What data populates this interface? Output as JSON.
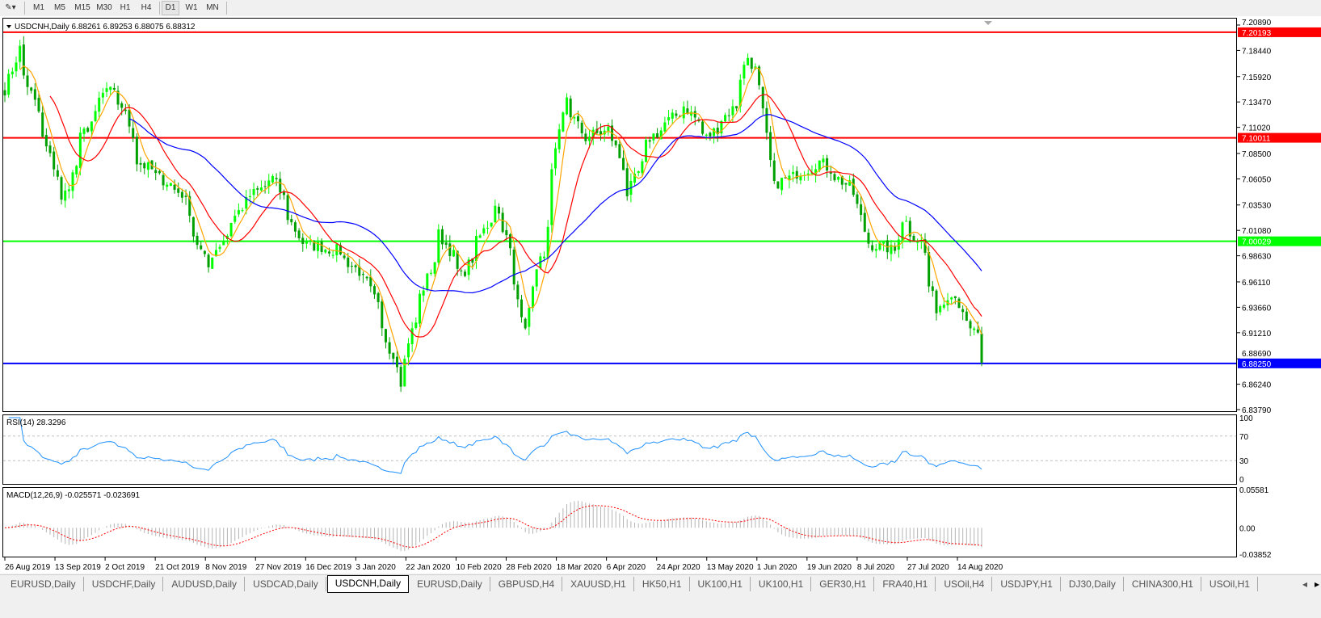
{
  "toolbar": {
    "timeframes": [
      "M1",
      "M5",
      "M15",
      "M30",
      "H1",
      "H4",
      "D1",
      "W1",
      "MN"
    ],
    "active": "D1"
  },
  "chart": {
    "header": "USDCNH,Daily  6.88261 6.89253 6.88075 6.88312",
    "price_ticks": [
      "7.20890",
      "7.18440",
      "7.15920",
      "7.13470",
      "7.11020",
      "7.08500",
      "7.06050",
      "7.03530",
      "7.01080",
      "6.98630",
      "6.96110",
      "6.93660",
      "6.91210",
      "6.88690",
      "6.86240",
      "6.83790"
    ],
    "hlines": [
      {
        "price": "7.20193",
        "color": "#ff0000"
      },
      {
        "price": "7.10011",
        "color": "#ff0000"
      },
      {
        "price": "7.00029",
        "color": "#00ff00"
      },
      {
        "price": "6.88250",
        "color": "#0000ff"
      }
    ],
    "date_labels": [
      "26 Aug 2019",
      "13 Sep 2019",
      "2 Oct 2019",
      "21 Oct 2019",
      "8 Nov 2019",
      "27 Nov 2019",
      "16 Dec 2019",
      "3 Jan 2020",
      "22 Jan 2020",
      "10 Feb 2020",
      "28 Feb 2020",
      "18 Mar 2020",
      "6 Apr 2020",
      "24 Apr 2020",
      "13 May 2020",
      "1 Jun 2020",
      "19 Jun 2020",
      "8 Jul 2020",
      "27 Jul 2020",
      "14 Aug 2020"
    ],
    "rsi": {
      "label": "RSI(14) 28.3296",
      "ticks": [
        "100",
        "70",
        "30",
        "0"
      ],
      "color": "#1e90ff"
    },
    "macd": {
      "label": "MACD(12,26,9) -0.025571 -0.023691",
      "ticks": [
        "0.05581",
        "0.00",
        "-0.03852"
      ],
      "signal_color": "#ff0000",
      "hist_color": "#b4b4b4"
    },
    "colors": {
      "bull": "#00ff00",
      "bear": "#00a000",
      "ma_fast": "#ffa500",
      "ma_mid": "#ff0000",
      "ma_slow": "#0000ff"
    }
  },
  "chart_data": {
    "type": "candlestick",
    "symbol": "USDCNH",
    "timeframe": "Daily",
    "ylim": [
      6.8356,
      7.2159
    ],
    "approx_close_anchors": [
      [
        "2019-08-26",
        7.147
      ],
      [
        "2019-08-30",
        7.186
      ],
      [
        "2019-09-16",
        7.038
      ],
      [
        "2019-09-23",
        7.1
      ],
      [
        "2019-10-02",
        7.147
      ],
      [
        "2019-10-08",
        7.131
      ],
      [
        "2019-10-14",
        7.077
      ],
      [
        "2019-10-30",
        7.046
      ],
      [
        "2019-11-08",
        6.975
      ],
      [
        "2019-11-22",
        7.038
      ],
      [
        "2019-12-03",
        7.061
      ],
      [
        "2019-12-13",
        6.999
      ],
      [
        "2019-12-27",
        6.991
      ],
      [
        "2020-01-07",
        6.96
      ],
      [
        "2020-01-16",
        6.89
      ],
      [
        "2020-01-20",
        6.866
      ],
      [
        "2020-01-22",
        6.905
      ],
      [
        "2020-02-03",
        7.007
      ],
      [
        "2020-02-11",
        6.967
      ],
      [
        "2020-02-24",
        7.038
      ],
      [
        "2020-03-05",
        6.921
      ],
      [
        "2020-03-12",
        6.991
      ],
      [
        "2020-03-20",
        7.14
      ],
      [
        "2020-03-27",
        7.1
      ],
      [
        "2020-04-06",
        7.108
      ],
      [
        "2020-04-13",
        7.046
      ],
      [
        "2020-04-21",
        7.1
      ],
      [
        "2020-05-04",
        7.131
      ],
      [
        "2020-05-12",
        7.1
      ],
      [
        "2020-05-22",
        7.131
      ],
      [
        "2020-05-27",
        7.178
      ],
      [
        "2020-06-01",
        7.147
      ],
      [
        "2020-06-05",
        7.053
      ],
      [
        "2020-06-23",
        7.077
      ],
      [
        "2020-07-06",
        7.046
      ],
      [
        "2020-07-10",
        6.999
      ],
      [
        "2020-07-21",
        6.991
      ],
      [
        "2020-07-23",
        7.022
      ],
      [
        "2020-07-30",
        6.999
      ],
      [
        "2020-08-05",
        6.936
      ],
      [
        "2020-08-11",
        6.952
      ],
      [
        "2020-08-18",
        6.913
      ],
      [
        "2020-08-20",
        6.913
      ],
      [
        "2020-08-21",
        6.883
      ]
    ],
    "last_ohlc": {
      "open": 6.88261,
      "high": 6.89253,
      "low": 6.88075,
      "close": 6.88312
    }
  },
  "tabs": [
    "EURUSD,Daily",
    "USDCHF,Daily",
    "AUDUSD,Daily",
    "USDCAD,Daily",
    "USDCNH,Daily",
    "EURUSD,Daily",
    "GBPUSD,H4",
    "XAUUSD,H1",
    "HK50,H1",
    "UK100,H1",
    "UK100,H1",
    "GER30,H1",
    "FRA40,H1",
    "USOil,H4",
    "USDJPY,H1",
    "DJ30,Daily",
    "CHINA300,H1",
    "USOil,H1"
  ],
  "active_tab": "USDCNH,Daily"
}
